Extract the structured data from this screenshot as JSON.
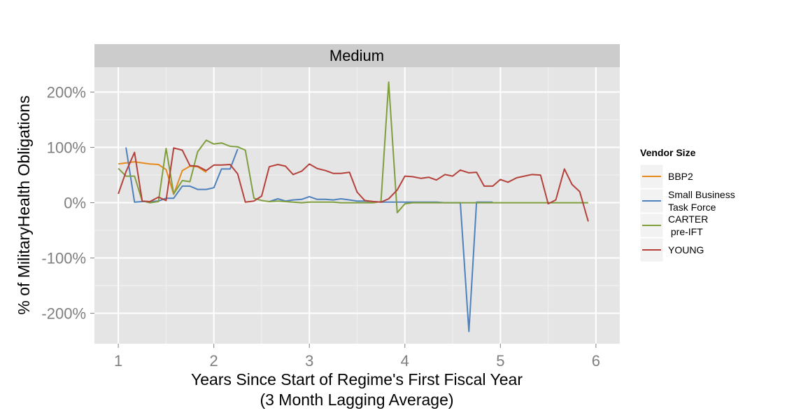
{
  "chart_data": {
    "type": "line",
    "facet": "Medium",
    "xlabel": [
      "Years Since Start of Regime's First Fiscal Year",
      "(3 Month Lagging Average)"
    ],
    "ylabel": "% of MilitaryHealth Obligations",
    "xlim": [
      0.75,
      6.25
    ],
    "ylim": [
      -2.55,
      2.45
    ],
    "x_ticks": [
      1,
      2,
      3,
      4,
      5,
      6
    ],
    "x_tick_labels": [
      "1",
      "2",
      "3",
      "4",
      "5",
      "6"
    ],
    "y_ticks": [
      2,
      1,
      0,
      -1,
      -2
    ],
    "y_tick_labels": [
      "200%",
      "100%",
      "0%",
      "-100%",
      "-200%"
    ],
    "grid": true,
    "legend": {
      "title": "Vendor Size",
      "position": "right"
    },
    "series": [
      {
        "name": "BBP2",
        "color": "#e58a1d",
        "points": [
          [
            1.0,
            0.7
          ],
          [
            1.08,
            0.72
          ],
          [
            1.17,
            0.74
          ],
          [
            1.25,
            0.72
          ],
          [
            1.33,
            0.7
          ],
          [
            1.42,
            0.69
          ],
          [
            1.5,
            0.6
          ],
          [
            1.58,
            0.15
          ],
          [
            1.67,
            0.58
          ],
          [
            1.75,
            0.66
          ],
          [
            1.83,
            0.65
          ],
          [
            1.92,
            0.55
          ]
        ]
      },
      {
        "name": "Small Business\nTask Force",
        "color": "#4f81bd",
        "segments": [
          [
            [
              1.08,
              1.0
            ],
            [
              1.17,
              0.01
            ],
            [
              1.25,
              0.02
            ],
            [
              1.33,
              0.02
            ],
            [
              1.42,
              0.03
            ],
            [
              1.5,
              0.08
            ],
            [
              1.58,
              0.08
            ],
            [
              1.67,
              0.3
            ],
            [
              1.75,
              0.3
            ],
            [
              1.83,
              0.24
            ],
            [
              1.92,
              0.24
            ],
            [
              2.0,
              0.27
            ],
            [
              2.08,
              0.61
            ],
            [
              2.17,
              0.61
            ],
            [
              2.25,
              0.97
            ]
          ],
          [
            [
              2.58,
              0.02
            ],
            [
              2.67,
              0.07
            ],
            [
              2.75,
              0.03
            ],
            [
              2.83,
              0.05
            ],
            [
              2.92,
              0.06
            ],
            [
              3.0,
              0.11
            ],
            [
              3.08,
              0.06
            ],
            [
              3.17,
              0.06
            ],
            [
              3.25,
              0.05
            ],
            [
              3.33,
              0.07
            ],
            [
              3.42,
              0.05
            ],
            [
              3.5,
              0.03
            ],
            [
              3.58,
              0.03
            ],
            [
              3.67,
              0.02
            ],
            [
              3.75,
              0.01
            ],
            [
              3.83,
              0.01
            ],
            [
              3.92,
              0.01
            ],
            [
              4.0,
              0.01
            ],
            [
              4.08,
              0.01
            ],
            [
              4.17,
              0.01
            ],
            [
              4.25,
              0.01
            ],
            [
              4.33,
              0.01
            ],
            [
              4.42,
              0.0
            ],
            [
              4.5,
              0.0
            ],
            [
              4.58,
              0.0
            ],
            [
              4.67,
              -2.33
            ],
            [
              4.75,
              0.01
            ],
            [
              4.83,
              0.01
            ],
            [
              4.92,
              0.01
            ]
          ]
        ]
      },
      {
        "name": "CARTER\n pre-IFT",
        "color": "#7f9f3f",
        "points": [
          [
            1.0,
            0.62
          ],
          [
            1.08,
            0.48
          ],
          [
            1.17,
            0.48
          ],
          [
            1.25,
            0.03
          ],
          [
            1.33,
            0.0
          ],
          [
            1.42,
            0.02
          ],
          [
            1.5,
            0.98
          ],
          [
            1.58,
            0.16
          ],
          [
            1.67,
            0.4
          ],
          [
            1.75,
            0.38
          ],
          [
            1.83,
            0.92
          ],
          [
            1.92,
            1.13
          ],
          [
            2.0,
            1.06
          ],
          [
            2.08,
            1.08
          ],
          [
            2.17,
            1.02
          ],
          [
            2.25,
            1.01
          ],
          [
            2.33,
            0.95
          ],
          [
            2.42,
            0.08
          ],
          [
            2.5,
            0.04
          ],
          [
            2.58,
            0.02
          ],
          [
            2.67,
            0.03
          ],
          [
            2.75,
            0.02
          ],
          [
            2.83,
            0.01
          ],
          [
            2.92,
            0.0
          ],
          [
            3.0,
            0.01
          ],
          [
            3.08,
            0.01
          ],
          [
            3.17,
            0.01
          ],
          [
            3.25,
            0.01
          ],
          [
            3.33,
            0.0
          ],
          [
            3.42,
            0.0
          ],
          [
            3.5,
            0.0
          ],
          [
            3.58,
            0.0
          ],
          [
            3.67,
            0.0
          ],
          [
            3.75,
            0.02
          ],
          [
            3.83,
            2.18
          ],
          [
            3.92,
            -0.18
          ],
          [
            4.0,
            -0.02
          ],
          [
            4.08,
            0.0
          ],
          [
            4.17,
            0.0
          ],
          [
            4.25,
            0.0
          ],
          [
            4.33,
            0.0
          ],
          [
            4.42,
            0.0
          ],
          [
            4.5,
            0.0
          ],
          [
            4.58,
            0.0
          ],
          [
            4.67,
            0.0
          ],
          [
            4.75,
            0.0
          ],
          [
            4.83,
            0.0
          ],
          [
            4.92,
            0.0
          ],
          [
            5.0,
            0.0
          ],
          [
            5.08,
            0.0
          ],
          [
            5.17,
            0.0
          ],
          [
            5.25,
            0.0
          ],
          [
            5.33,
            0.0
          ],
          [
            5.42,
            0.0
          ],
          [
            5.5,
            0.0
          ],
          [
            5.58,
            0.0
          ],
          [
            5.67,
            0.0
          ],
          [
            5.75,
            0.0
          ],
          [
            5.83,
            0.0
          ],
          [
            5.92,
            0.0
          ]
        ]
      },
      {
        "name": "YOUNG",
        "color": "#b5413b",
        "points": [
          [
            1.0,
            0.16
          ],
          [
            1.08,
            0.56
          ],
          [
            1.17,
            0.91
          ],
          [
            1.25,
            0.03
          ],
          [
            1.33,
            0.02
          ],
          [
            1.42,
            0.1
          ],
          [
            1.5,
            0.04
          ],
          [
            1.58,
            0.99
          ],
          [
            1.67,
            0.95
          ],
          [
            1.75,
            0.67
          ],
          [
            1.83,
            0.66
          ],
          [
            1.92,
            0.58
          ],
          [
            2.0,
            0.68
          ],
          [
            2.08,
            0.68
          ],
          [
            2.17,
            0.69
          ],
          [
            2.25,
            0.52
          ],
          [
            2.33,
            0.01
          ],
          [
            2.42,
            0.03
          ],
          [
            2.5,
            0.12
          ],
          [
            2.58,
            0.65
          ],
          [
            2.67,
            0.69
          ],
          [
            2.75,
            0.66
          ],
          [
            2.83,
            0.51
          ],
          [
            2.92,
            0.57
          ],
          [
            3.0,
            0.7
          ],
          [
            3.08,
            0.62
          ],
          [
            3.17,
            0.58
          ],
          [
            3.25,
            0.53
          ],
          [
            3.33,
            0.53
          ],
          [
            3.42,
            0.55
          ],
          [
            3.5,
            0.19
          ],
          [
            3.58,
            0.04
          ],
          [
            3.67,
            0.02
          ],
          [
            3.75,
            0.01
          ],
          [
            3.83,
            0.07
          ],
          [
            3.92,
            0.23
          ],
          [
            4.0,
            0.48
          ],
          [
            4.08,
            0.47
          ],
          [
            4.17,
            0.44
          ],
          [
            4.25,
            0.46
          ],
          [
            4.33,
            0.41
          ],
          [
            4.42,
            0.51
          ],
          [
            4.5,
            0.48
          ],
          [
            4.58,
            0.59
          ],
          [
            4.67,
            0.54
          ],
          [
            4.75,
            0.55
          ],
          [
            4.83,
            0.3
          ],
          [
            4.92,
            0.3
          ],
          [
            5.0,
            0.42
          ],
          [
            5.08,
            0.37
          ],
          [
            5.17,
            0.45
          ],
          [
            5.25,
            0.48
          ],
          [
            5.33,
            0.51
          ],
          [
            5.42,
            0.5
          ],
          [
            5.5,
            -0.02
          ],
          [
            5.58,
            0.05
          ],
          [
            5.67,
            0.61
          ],
          [
            5.75,
            0.33
          ],
          [
            5.83,
            0.2
          ],
          [
            5.92,
            -0.34
          ]
        ]
      }
    ]
  }
}
